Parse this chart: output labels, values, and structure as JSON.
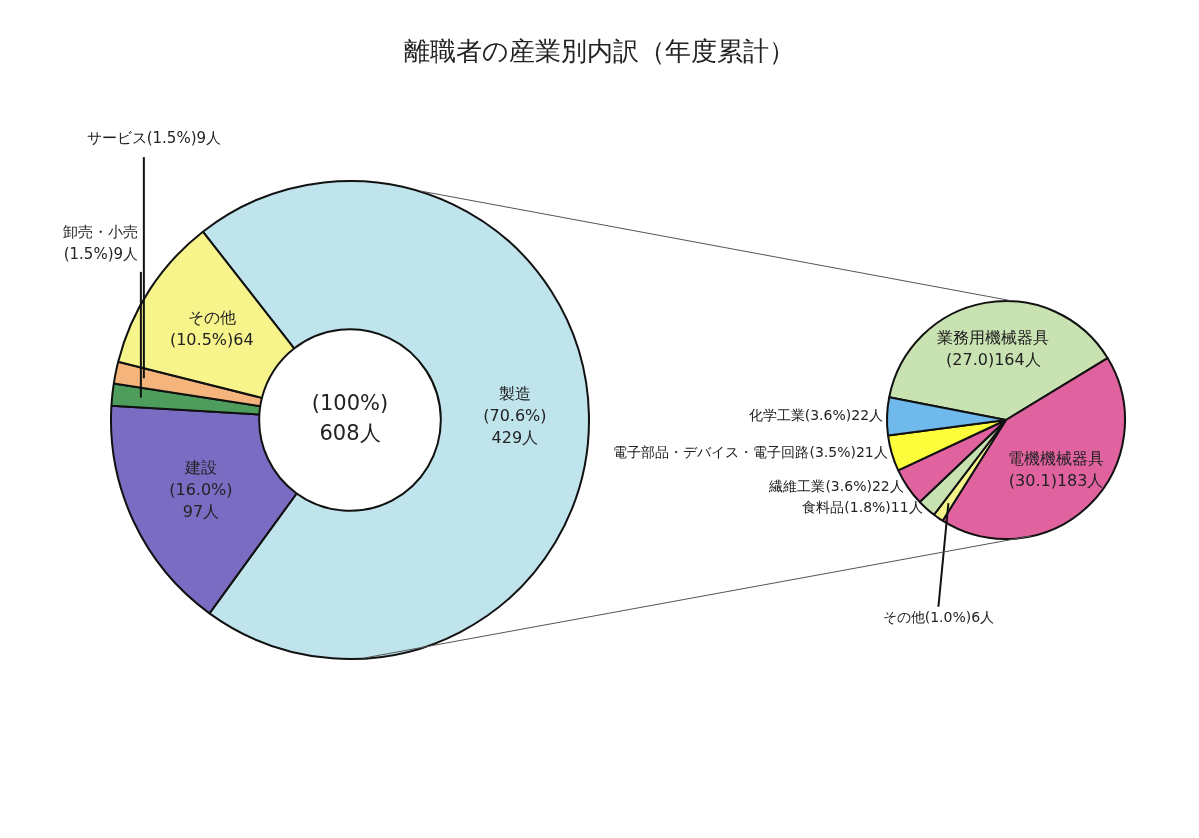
{
  "chart_data": [
    {
      "type": "donut",
      "title": "離職者の産業別内訳（年度累計）",
      "categories": [
        "製造",
        "建設",
        "卸売・小売",
        "サービス",
        "その他"
      ],
      "values": [
        429,
        97,
        9,
        9,
        64
      ],
      "colors": [
        "#bfe4ec",
        "#7a6cc2",
        "#4f9d5c",
        "#f5b47c",
        "#f8f48c"
      ],
      "value_labels": [
        "(70.6%)\n429人",
        "(16.0%)\n97人",
        "(1.5%)9人",
        "(1.5%)9人",
        "(10.5%)64"
      ],
      "annotations": [
        "(100%)\n608人"
      ]
    },
    {
      "type": "pie",
      "categories": [
        "業務用機械器具",
        "電機機械器具",
        "その他",
        "食料品",
        "繊維工業",
        "電子部品・デバイス・電子回路",
        "化学工業"
      ],
      "values": [
        164,
        183,
        6,
        11,
        22,
        21,
        22
      ],
      "colors": [
        "#c9e2b2",
        "#e0629f",
        "#f6f58c",
        "#c9e2b2",
        "#e0629f",
        "#fdfd3c",
        "#6fb9ec"
      ],
      "value_labels": [
        "(27.0)164人",
        "(30.1)183人",
        "(1.0%)6人",
        "(1.8%)11人",
        "(3.6%)22人",
        "(3.5%)21人",
        "(3.6%)22人"
      ]
    }
  ]
}
